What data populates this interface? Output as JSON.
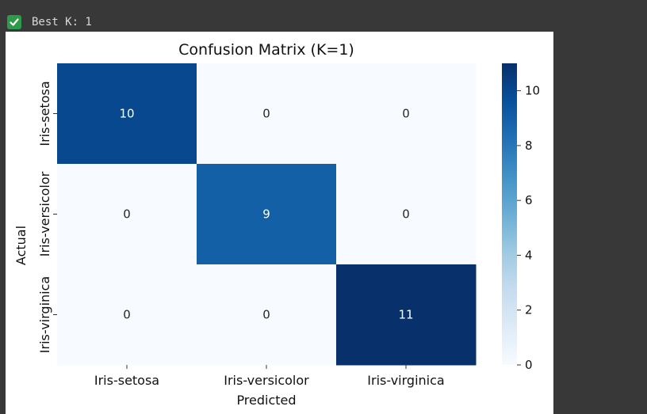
{
  "output": {
    "status_icon": "check-mark-icon",
    "text": "Best K: 1"
  },
  "chart_data": {
    "type": "heatmap",
    "title": "Confusion Matrix (K=1)",
    "xlabel": "Predicted",
    "ylabel": "Actual",
    "x_categories": [
      "Iris-setosa",
      "Iris-versicolor",
      "Iris-virginica"
    ],
    "y_categories": [
      "Iris-setosa",
      "Iris-versicolor",
      "Iris-virginica"
    ],
    "values": [
      [
        10,
        0,
        0
      ],
      [
        0,
        9,
        0
      ],
      [
        0,
        0,
        11
      ]
    ],
    "colormap": "Blues",
    "colorbar": {
      "range": [
        0,
        11
      ],
      "ticks": [
        0,
        2,
        4,
        6,
        8,
        10
      ]
    },
    "annotations": true
  }
}
